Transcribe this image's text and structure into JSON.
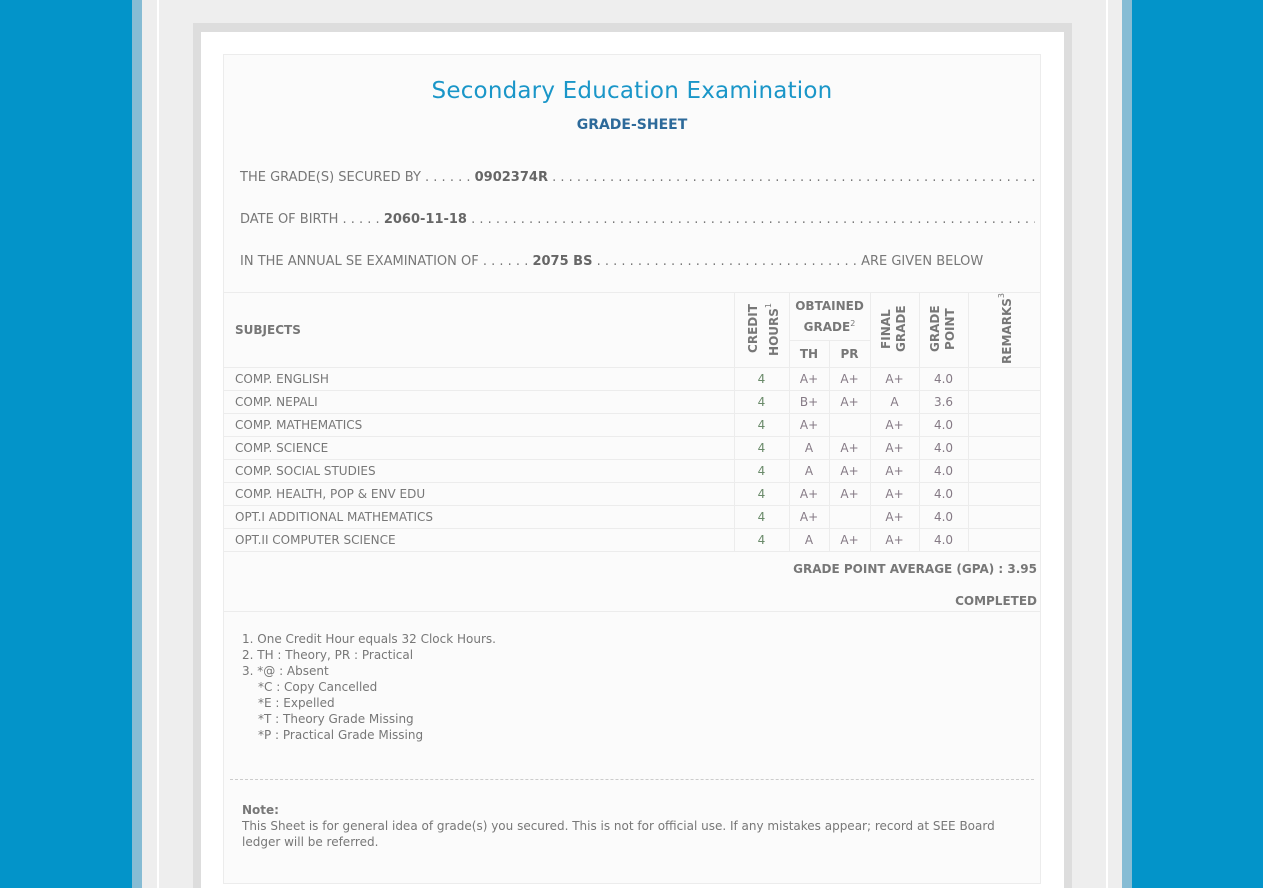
{
  "title": "Secondary Education Examination",
  "subtitle": "GRADE-SHEET",
  "info": [
    {
      "label": "THE GRADE(S) SECURED BY",
      "value": "0902374R",
      "suffix": ""
    },
    {
      "label": "DATE OF BIRTH",
      "value": "2060-11-18",
      "suffix": ""
    },
    {
      "label": "IN THE ANNUAL SE EXAMINATION OF",
      "value": "2075 BS",
      "suffix": "ARE GIVEN BELOW"
    }
  ],
  "table": {
    "headers": {
      "subjects": "SUBJECTS",
      "credit": "CREDIT HOURS",
      "credit_sup": "1",
      "obtained": "OBTAINED GRADE",
      "obtained_sup": "2",
      "th": "TH",
      "pr": "PR",
      "final": "FINAL GRADE",
      "point": "GRADE POINT",
      "remarks": "REMARKS",
      "remarks_sup": "3"
    },
    "rows": [
      {
        "subject": "COMP. ENGLISH",
        "credit": "4",
        "th": "A+",
        "pr": "A+",
        "final": "A+",
        "point": "4.0",
        "remarks": ""
      },
      {
        "subject": "COMP. NEPALI",
        "credit": "4",
        "th": "B+",
        "pr": "A+",
        "final": "A",
        "point": "3.6",
        "remarks": ""
      },
      {
        "subject": "COMP. MATHEMATICS",
        "credit": "4",
        "th": "A+",
        "pr": "",
        "final": "A+",
        "point": "4.0",
        "remarks": ""
      },
      {
        "subject": "COMP. SCIENCE",
        "credit": "4",
        "th": "A",
        "pr": "A+",
        "final": "A+",
        "point": "4.0",
        "remarks": ""
      },
      {
        "subject": "COMP. SOCIAL STUDIES",
        "credit": "4",
        "th": "A",
        "pr": "A+",
        "final": "A+",
        "point": "4.0",
        "remarks": ""
      },
      {
        "subject": "COMP. HEALTH, POP & ENV EDU",
        "credit": "4",
        "th": "A+",
        "pr": "A+",
        "final": "A+",
        "point": "4.0",
        "remarks": ""
      },
      {
        "subject": "OPT.I ADDITIONAL MATHEMATICS",
        "credit": "4",
        "th": "A+",
        "pr": "",
        "final": "A+",
        "point": "4.0",
        "remarks": ""
      },
      {
        "subject": "OPT.II COMPUTER SCIENCE",
        "credit": "4",
        "th": "A",
        "pr": "A+",
        "final": "A+",
        "point": "4.0",
        "remarks": ""
      }
    ]
  },
  "gpa": "GRADE POINT AVERAGE (GPA) : 3.95",
  "status": "COMPLETED",
  "legend": [
    "1. One Credit Hour equals 32 Clock Hours.",
    "2. TH : Theory, PR : Practical",
    "3. *@ : Absent",
    "*C : Copy Cancelled",
    "*E : Expelled",
    "*T : Theory Grade Missing",
    "*P : Practical Grade Missing"
  ],
  "note": {
    "label": "Note:",
    "text": "This Sheet is for general idea of grade(s) you secured. This is not for official use. If any mistakes appear; record at SEE Board ledger will be referred."
  },
  "colors": {
    "background": "#0394c9",
    "title": "#1a96c8",
    "subtitle": "#2d6a9a"
  }
}
